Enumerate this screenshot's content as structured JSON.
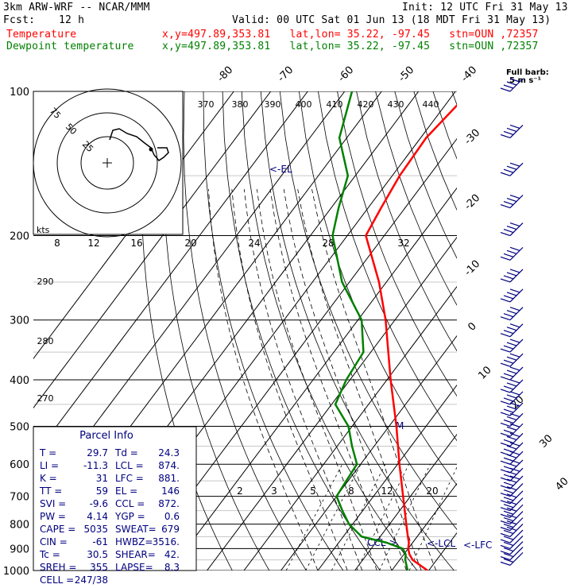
{
  "header": {
    "model": "3km ARW-WRF -- NCAR/MMM",
    "init": "Init: 12 UTC Fri 31 May 13",
    "fcst_label": "Fcst:",
    "fcst_value": "12 h",
    "valid": "Valid: 00 UTC Sat 01 Jun 13 (18 MDT Fri 31 May 13)",
    "temp_label": "Temperature",
    "dew_label": "Dewpoint temperature",
    "loc": "x,y=497.89,353.81   lat,lon= 35.22, -97.45   stn=OUN ,72357"
  },
  "colors": {
    "temperature": "#ff0000",
    "dewpoint": "#008000",
    "annot": "#000080"
  },
  "barb_header": {
    "line1": "Full barb:",
    "line2": "5 m s⁻¹"
  },
  "hodograph": {
    "unit": "kts",
    "rings": [
      "75",
      "50",
      "25"
    ]
  },
  "chart_data": {
    "type": "line",
    "title": "",
    "y_axis_pressure_hPa": [
      100,
      200,
      300,
      400,
      500,
      600,
      700,
      800,
      900,
      1000
    ],
    "y_tick_labels": [
      "100",
      "200",
      "300",
      "400",
      "500",
      "600",
      "700",
      "800",
      "900",
      "1000"
    ],
    "isotherm_labels_C": [
      "-80",
      "-70",
      "-60",
      "-50",
      "-40",
      "-30",
      "-20",
      "-10",
      "0",
      "10",
      "20",
      "30",
      "40"
    ],
    "theta_e_labels_K": [
      "370",
      "380",
      "390",
      "400",
      "410",
      "420",
      "430",
      "440"
    ],
    "theta_labels_K": [
      "290",
      "280",
      "270"
    ],
    "mixing_ratio_labels": [
      "2",
      "3",
      "5",
      "8",
      "12",
      "20"
    ],
    "mixing_ratio_top_labels": [
      "8",
      "12",
      "16",
      "20",
      "24",
      "28",
      "32"
    ],
    "series": [
      {
        "name": "Temperature",
        "pressure": [
          1000,
          950,
          925,
          900,
          875,
          850,
          800,
          700,
          600,
          500,
          400,
          300,
          250,
          200,
          175,
          150,
          125,
          100
        ],
        "values": [
          29.7,
          23.5,
          21.5,
          20.0,
          19.0,
          17.5,
          14.5,
          8.0,
          0.5,
          -8.0,
          -19.0,
          -32.5,
          -42.0,
          -55.0,
          -56.5,
          -58.0,
          -58.5,
          -56.0
        ]
      },
      {
        "name": "Dewpoint temperature",
        "pressure": [
          1000,
          950,
          925,
          900,
          875,
          850,
          800,
          750,
          700,
          650,
          600,
          550,
          500,
          450,
          400,
          350,
          300,
          250,
          200,
          175,
          150,
          125,
          100
        ],
        "values": [
          24.3,
          21.5,
          20.5,
          18.5,
          13.0,
          5.0,
          -1.0,
          -5.5,
          -10.0,
          -10.5,
          -11.0,
          -16.0,
          -21.0,
          -29.0,
          -31.0,
          -32.0,
          -39.0,
          -52.0,
          -64.0,
          -68.0,
          -72.0,
          -82.0,
          -88.0
        ]
      }
    ],
    "annotations": [
      {
        "text": "<-EL",
        "pressure": 146
      },
      {
        "text": "<-LCL",
        "pressure": 874
      },
      {
        "text": "<-LFC",
        "pressure": 881
      },
      {
        "text": "CCL->",
        "pressure": 872
      },
      {
        "text": "M",
        "pressure": 500
      }
    ]
  },
  "parcel_info": {
    "title": "Parcel Info",
    "rows": [
      [
        "T  =",
        "29.7",
        "Td =",
        "24.3"
      ],
      [
        "LI =",
        "-11.3",
        "LCL =",
        "874."
      ],
      [
        "K  =",
        "31",
        "LFC =",
        "881."
      ],
      [
        "TT =",
        "59",
        "EL  =",
        "146"
      ],
      [
        "SVI =",
        "-9.6",
        "CCL =",
        "872."
      ],
      [
        "PW =",
        "4.14",
        "YGP =",
        "0.6"
      ],
      [
        "CAPE =",
        "5035",
        "SWEAT=",
        "679"
      ],
      [
        "CIN =",
        "-61",
        "HWBZ=",
        "3516."
      ],
      [
        "Tc =",
        "30.5",
        "SHEAR=",
        "42."
      ],
      [
        "SREH =",
        "355",
        "LAPSE=",
        "8.3"
      ],
      [
        "CELL =",
        "247/38",
        "",
        ""
      ]
    ]
  }
}
